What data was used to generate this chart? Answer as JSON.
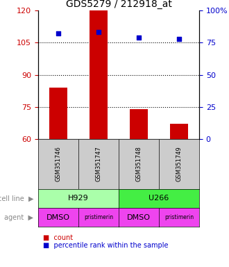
{
  "title": "GDS5279 / 212918_at",
  "samples": [
    "GSM351746",
    "GSM351747",
    "GSM351748",
    "GSM351749"
  ],
  "bar_values": [
    84,
    120,
    74,
    67
  ],
  "scatter_values": [
    82,
    83,
    79,
    78
  ],
  "ylim_left": [
    60,
    120
  ],
  "ylim_right": [
    0,
    100
  ],
  "left_ticks": [
    60,
    75,
    90,
    105,
    120
  ],
  "right_ticks": [
    0,
    25,
    50,
    75,
    100
  ],
  "right_tick_labels": [
    "0",
    "25",
    "50",
    "75",
    "100%"
  ],
  "hlines": [
    75,
    90,
    105
  ],
  "bar_color": "#cc0000",
  "scatter_color": "#0000cc",
  "cell_line_labels": [
    "H929",
    "U266"
  ],
  "cell_line_colors": [
    "#aaffaa",
    "#44ee44"
  ],
  "cell_line_spans": [
    [
      0,
      2
    ],
    [
      2,
      4
    ]
  ],
  "agent_labels": [
    "DMSO",
    "pristimerin",
    "DMSO",
    "pristimerin"
  ],
  "agent_color": "#ee44ee",
  "sample_box_color": "#cccccc",
  "left_axis_color": "#cc0000",
  "right_axis_color": "#0000cc",
  "legend_count_color": "#cc0000",
  "legend_scatter_color": "#0000cc"
}
